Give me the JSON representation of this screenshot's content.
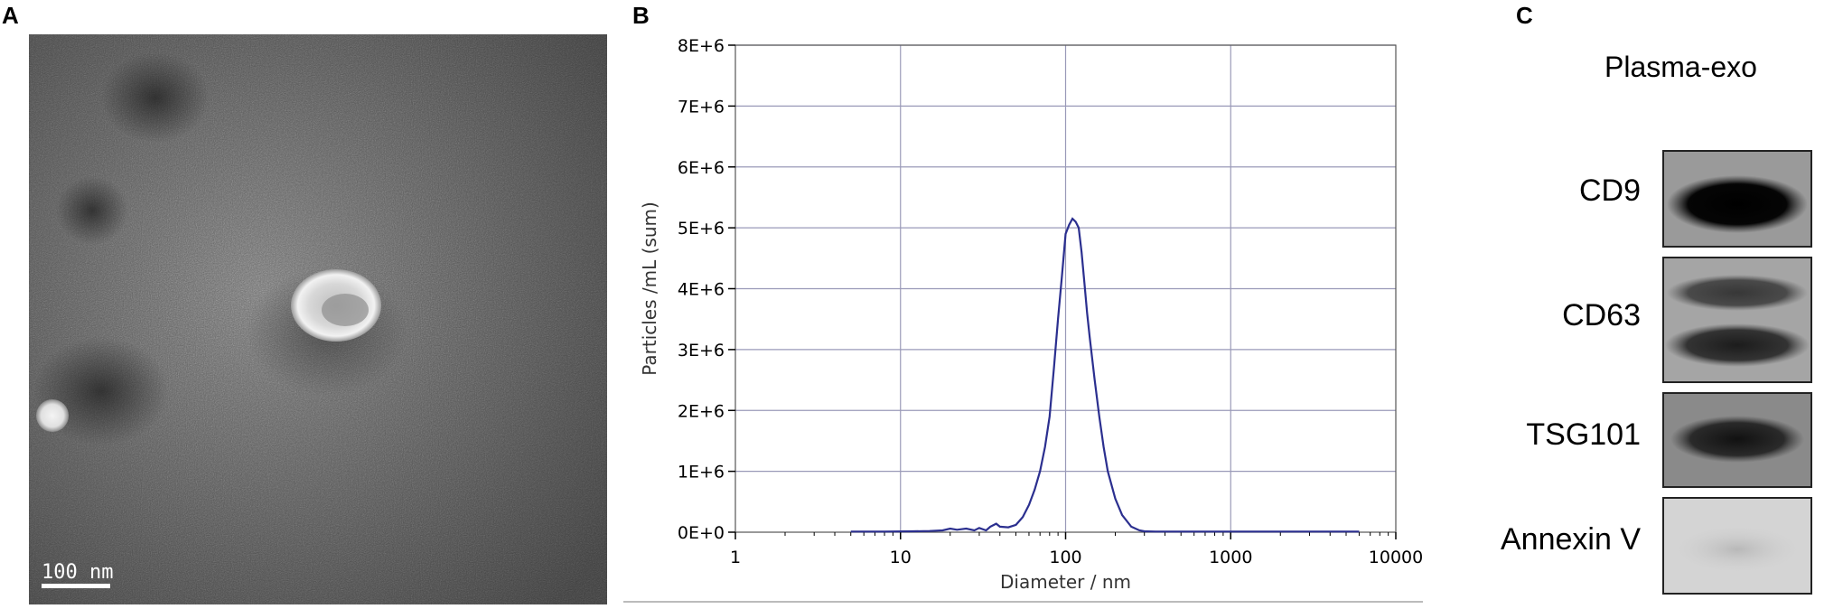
{
  "panels": {
    "a": {
      "letter": "A",
      "scale_bar_label": "100 nm"
    },
    "b": {
      "letter": "B"
    },
    "c": {
      "letter": "C"
    }
  },
  "chart_data": {
    "type": "line",
    "title": "",
    "xlabel": "Diameter / nm",
    "ylabel": "Particles /mL (sum)",
    "x_scale": "log",
    "xlim": [
      1,
      10000
    ],
    "ylim": [
      0,
      8000000
    ],
    "x_ticks": [
      1,
      10,
      100,
      1000,
      10000
    ],
    "x_tick_labels": [
      "1",
      "10",
      "100",
      "1000",
      "10000"
    ],
    "y_ticks": [
      0,
      1000000,
      2000000,
      3000000,
      4000000,
      5000000,
      6000000,
      7000000,
      8000000
    ],
    "y_tick_labels": [
      "0E+0",
      "1E+6",
      "2E+6",
      "3E+6",
      "4E+6",
      "5E+6",
      "6E+6",
      "7E+6",
      "8E+6"
    ],
    "grid": true,
    "line_color": "#2b2f8f",
    "series": [
      {
        "x": [
          5,
          8,
          12,
          15,
          18,
          20,
          22,
          25,
          28,
          30,
          33,
          35,
          38,
          40,
          45,
          50,
          55,
          60,
          65,
          70,
          75,
          80,
          85,
          90,
          95,
          100,
          105,
          110,
          115,
          120,
          125,
          130,
          135,
          140,
          150,
          160,
          170,
          180,
          200,
          220,
          250,
          280,
          300,
          350,
          400,
          500,
          700,
          1000,
          2000,
          4000,
          6000
        ],
        "y": [
          10000,
          10000,
          15000,
          20000,
          30000,
          60000,
          40000,
          60000,
          30000,
          70000,
          30000,
          90000,
          140000,
          90000,
          80000,
          120000,
          250000,
          450000,
          700000,
          1000000,
          1400000,
          1900000,
          2700000,
          3500000,
          4200000,
          4900000,
          5050000,
          5150000,
          5100000,
          5000000,
          4600000,
          4100000,
          3600000,
          3200000,
          2500000,
          1900000,
          1400000,
          1000000,
          550000,
          280000,
          90000,
          30000,
          15000,
          10000,
          10000,
          10000,
          10000,
          10000,
          10000,
          10000,
          10000
        ]
      }
    ]
  },
  "blot": {
    "title": "Plasma-exo",
    "bands": [
      {
        "label": "CD9"
      },
      {
        "label": "CD63"
      },
      {
        "label": "TSG101"
      },
      {
        "label": "Annexin V"
      }
    ]
  }
}
